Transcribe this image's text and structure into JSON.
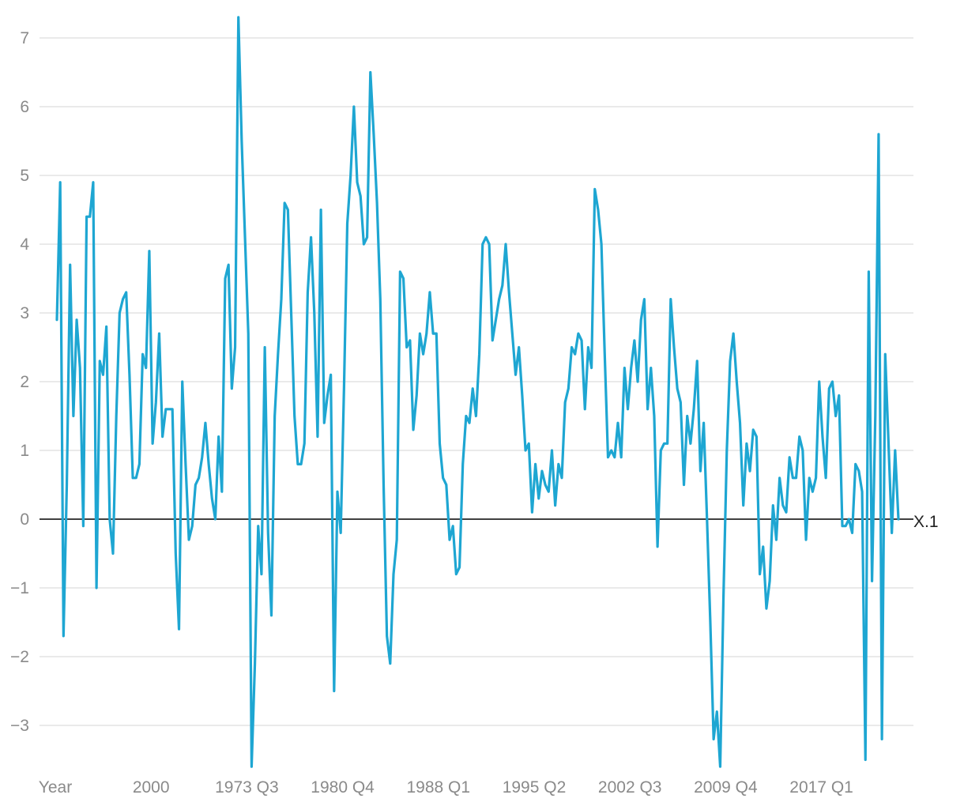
{
  "chart_data": {
    "type": "line",
    "title": "",
    "xlabel": "",
    "ylabel": "",
    "x_tick_labels": [
      "Year",
      "2000",
      "1973 Q3",
      "1980 Q4",
      "1988 Q1",
      "1995 Q2",
      "2002 Q3",
      "2009 Q4",
      "2017 Q1"
    ],
    "y_ticks": [
      "−3",
      "−2",
      "−1",
      "0",
      "1",
      "2",
      "3",
      "4",
      "5",
      "6",
      "7"
    ],
    "ylim": [
      -3.6,
      7.3
    ],
    "grid": true,
    "zero_line": true,
    "colors": {
      "series": "#1ea6d2",
      "grid": "#e3e3e3",
      "zero": "#000000"
    },
    "series": [
      {
        "name": "X.1",
        "values": [
          2.9,
          4.9,
          -1.7,
          0.5,
          3.7,
          1.5,
          2.9,
          2.2,
          -0.1,
          4.4,
          4.4,
          4.9,
          -1.0,
          2.3,
          2.1,
          2.8,
          0.0,
          -0.5,
          1.5,
          3.0,
          3.2,
          3.3,
          2.1,
          0.6,
          0.6,
          0.8,
          2.4,
          2.2,
          3.9,
          1.1,
          1.7,
          2.7,
          1.2,
          1.6,
          1.6,
          1.6,
          -0.5,
          -1.6,
          2.0,
          0.8,
          -0.3,
          -0.1,
          0.5,
          0.6,
          0.9,
          1.4,
          0.8,
          0.3,
          0.0,
          1.2,
          0.4,
          3.5,
          3.7,
          1.9,
          2.5,
          7.3,
          5.5,
          4.1,
          2.7,
          -3.6,
          -2.1,
          -0.1,
          -0.8,
          2.5,
          -0.2,
          -1.4,
          1.5,
          2.4,
          3.2,
          4.6,
          4.5,
          3.0,
          1.5,
          0.8,
          0.8,
          1.1,
          3.3,
          4.1,
          3.0,
          1.2,
          4.5,
          1.4,
          1.8,
          2.1,
          -2.5,
          0.4,
          -0.2,
          1.9,
          4.3,
          5.0,
          6.0,
          4.9,
          4.7,
          4.0,
          4.1,
          6.5,
          5.6,
          4.6,
          3.2,
          0.5,
          -1.7,
          -2.1,
          -0.8,
          -0.3,
          3.6,
          3.5,
          2.5,
          2.6,
          1.3,
          1.8,
          2.7,
          2.4,
          2.7,
          3.3,
          2.7,
          2.7,
          1.1,
          0.6,
          0.5,
          -0.3,
          -0.1,
          -0.8,
          -0.7,
          0.8,
          1.5,
          1.4,
          1.9,
          1.5,
          2.4,
          4.0,
          4.1,
          4.0,
          2.6,
          2.9,
          3.2,
          3.4,
          4.0,
          3.3,
          2.7,
          2.1,
          2.5,
          1.8,
          1.0,
          1.1,
          0.1,
          0.8,
          0.3,
          0.7,
          0.5,
          0.4,
          1.0,
          0.2,
          0.8,
          0.6,
          1.7,
          1.9,
          2.5,
          2.4,
          2.7,
          2.6,
          1.6,
          2.5,
          2.2,
          4.8,
          4.5,
          4.0,
          2.4,
          0.9,
          1.0,
          0.9,
          1.4,
          0.9,
          2.2,
          1.6,
          2.2,
          2.6,
          2.0,
          2.9,
          3.2,
          1.6,
          2.2,
          1.5,
          -0.4,
          1.0,
          1.1,
          1.1,
          3.2,
          2.5,
          1.9,
          1.7,
          0.5,
          1.5,
          1.1,
          1.6,
          2.3,
          0.7,
          1.4,
          0.0,
          -1.5,
          -3.2,
          -2.8,
          -3.6,
          -1.1,
          1.0,
          2.3,
          2.7,
          2.0,
          1.4,
          0.2,
          1.1,
          0.7,
          1.3,
          1.2,
          -0.8,
          -0.4,
          -1.3,
          -0.9,
          0.2,
          -0.3,
          0.6,
          0.2,
          0.1,
          0.9,
          0.6,
          0.6,
          1.2,
          1.0,
          -0.3,
          0.6,
          0.4,
          0.6,
          2.0,
          1.2,
          0.6,
          1.9,
          2.0,
          1.5,
          1.8,
          -0.1,
          -0.1,
          0.0,
          -0.2,
          0.8,
          0.7,
          0.4,
          -3.5,
          3.6,
          -0.9,
          1.5,
          5.6,
          -3.2,
          2.4,
          1.1,
          -0.2,
          1.0,
          0.0
        ]
      }
    ]
  }
}
